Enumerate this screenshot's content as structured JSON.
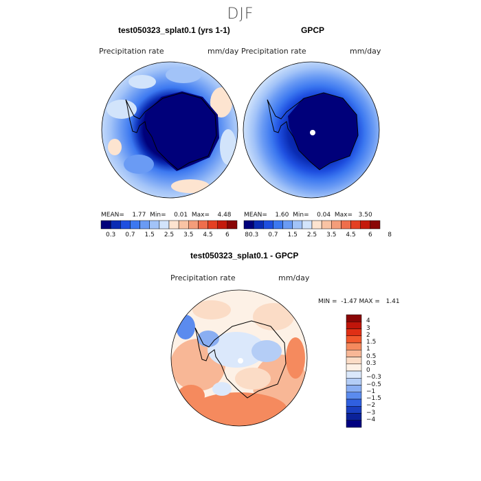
{
  "figure": {
    "season": "DJF"
  },
  "panels": [
    {
      "title": "test050323_splat0.1 (yrs 1-1)",
      "variable": "Precipitation rate",
      "units": "mm/day",
      "stats": {
        "mean_label": "MEAN=",
        "mean": "1.77",
        "min_label": "Min=",
        "min": "0.01",
        "max_label": "Max=",
        "max": "4.48"
      }
    },
    {
      "title": "GPCP",
      "variable": "Precipitation rate",
      "units": "mm/day",
      "stats": {
        "mean_label": "MEAN=",
        "mean": "1.60",
        "min_label": "Min=",
        "min": "0.04",
        "max_label": "Max=",
        "max": "3.50"
      }
    }
  ],
  "diff_panel": {
    "title": "test050323_splat0.1 - GPCP",
    "variable": "Precipitation rate",
    "units": "mm/day",
    "min_label": "MIN =",
    "min": "-1.47",
    "max_label": "MAX =",
    "max": "1.41"
  },
  "colorbar_abs": {
    "colors": [
      "#00007a",
      "#0a2cb4",
      "#1e4fe0",
      "#3c78f0",
      "#6a9bf4",
      "#a2c3f8",
      "#d2e4fb",
      "#fde4d0",
      "#f9c3a4",
      "#f49d7a",
      "#ef6e4c",
      "#e44023",
      "#c41a0c",
      "#8a0606"
    ],
    "tick_labels": [
      "0.3",
      "0.7",
      "1.5",
      "2.5",
      "3.5",
      "4.5",
      "6",
      "8"
    ]
  },
  "colorbar_diff": {
    "colors": [
      "#8a0606",
      "#c0150a",
      "#e02f15",
      "#f2582d",
      "#f58a5e",
      "#f8b796",
      "#fbdcc6",
      "#fdf1e6",
      "#dbe8fb",
      "#b4cdf6",
      "#8aaef2",
      "#5b8bee",
      "#3060e0",
      "#1a3fc0",
      "#0b229a",
      "#000080"
    ],
    "tick_labels": [
      "4",
      "3",
      "2",
      "1.5",
      "1",
      "0.5",
      "0.3",
      "0",
      "-0.3",
      "-0.5",
      "-1",
      "-1.5",
      "-2",
      "-3",
      "-4"
    ]
  }
}
